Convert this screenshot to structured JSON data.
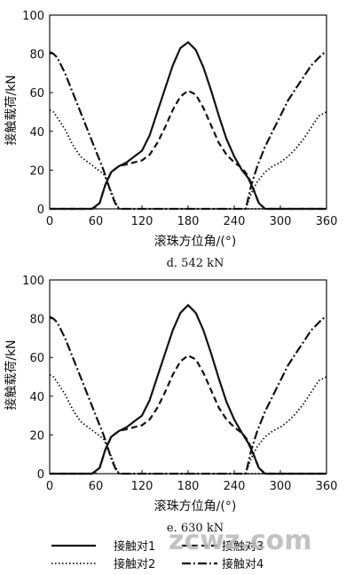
{
  "watermark": "zcwz.com",
  "legend": [
    {
      "label": "接触对1",
      "style": "solid"
    },
    {
      "label": "接触对3",
      "style": "dashed"
    },
    {
      "label": "接触对2",
      "style": "dotted"
    },
    {
      "label": "接触对4",
      "style": "dashdot"
    }
  ],
  "chart_data": [
    {
      "type": "line",
      "caption": "d. 542 kN",
      "xlabel": "滚珠方位角/(°)",
      "ylabel": "接触载荷/kN",
      "xlim": [
        0,
        360
      ],
      "ylim": [
        0,
        100
      ],
      "xticks": [
        0,
        60,
        120,
        180,
        240,
        300,
        360
      ],
      "yticks": [
        0,
        20,
        40,
        60,
        80,
        100
      ],
      "grid": false,
      "series": [
        {
          "name": "接触对1",
          "style": "solid",
          "x": [
            0,
            55,
            65,
            72,
            80,
            90,
            100,
            110,
            120,
            130,
            140,
            150,
            160,
            170,
            180,
            190,
            200,
            210,
            220,
            230,
            240,
            250,
            258,
            265,
            272,
            280,
            360
          ],
          "y": [
            0,
            0,
            3,
            12,
            19,
            22,
            24,
            27,
            30,
            38,
            50,
            62,
            74,
            83,
            86,
            82,
            73,
            61,
            48,
            36,
            27,
            20,
            16,
            10,
            3,
            0,
            0
          ]
        },
        {
          "name": "接触对3",
          "style": "dashed",
          "x": [
            0,
            55,
            65,
            72,
            80,
            90,
            100,
            110,
            120,
            130,
            140,
            150,
            160,
            170,
            180,
            190,
            200,
            210,
            220,
            230,
            240,
            250,
            258,
            265,
            272,
            280,
            360
          ],
          "y": [
            0,
            0,
            3,
            12,
            19,
            22,
            23,
            24,
            25,
            28,
            34,
            42,
            51,
            58,
            61,
            59,
            52,
            43,
            34,
            28,
            24,
            21,
            17,
            10,
            3,
            0,
            0
          ]
        },
        {
          "name": "接触对2",
          "style": "dotted",
          "x": [
            0,
            5,
            10,
            20,
            30,
            40,
            50,
            60,
            70,
            75,
            80,
            85,
            90,
            100,
            360
          ],
          "y": [
            51,
            50,
            47,
            41,
            33,
            27,
            24,
            21,
            18,
            14,
            9,
            4,
            0,
            0,
            0
          ]
        },
        {
          "name": "接触对4",
          "style": "dashdot",
          "x": [
            0,
            5,
            10,
            20,
            30,
            40,
            50,
            60,
            70,
            75,
            80,
            85,
            90,
            100,
            255,
            262,
            270,
            280,
            290,
            300,
            310,
            320,
            330,
            340,
            350,
            355,
            360
          ],
          "y": [
            81,
            80,
            78,
            70,
            60,
            50,
            40,
            30,
            20,
            14,
            8,
            3,
            0,
            0,
            0,
            12,
            22,
            32,
            40,
            48,
            56,
            62,
            68,
            74,
            78,
            80,
            81
          ]
        },
        {
          "name": "接触对2",
          "style": "dotted",
          "x": [
            255,
            262,
            270,
            280,
            290,
            300,
            310,
            320,
            330,
            340,
            350,
            360
          ],
          "y": [
            0,
            8,
            14,
            19,
            22,
            24,
            27,
            31,
            36,
            42,
            48,
            50
          ]
        }
      ]
    },
    {
      "type": "line",
      "caption": "e. 630 kN",
      "xlabel": "滚珠方位角/(°)",
      "ylabel": "接触载荷/kN",
      "xlim": [
        0,
        360
      ],
      "ylim": [
        0,
        100
      ],
      "xticks": [
        0,
        60,
        120,
        180,
        240,
        300,
        360
      ],
      "yticks": [
        0,
        20,
        40,
        60,
        80,
        100
      ],
      "grid": false,
      "series": [
        {
          "name": "接触对1",
          "style": "solid",
          "x": [
            0,
            55,
            65,
            72,
            80,
            90,
            100,
            110,
            120,
            130,
            140,
            150,
            160,
            170,
            180,
            190,
            200,
            210,
            220,
            230,
            240,
            250,
            258,
            265,
            272,
            280,
            360
          ],
          "y": [
            0,
            0,
            3,
            12,
            19,
            22,
            24,
            27,
            30,
            38,
            50,
            62,
            74,
            83,
            87,
            83,
            74,
            62,
            49,
            37,
            28,
            21,
            16,
            10,
            3,
            0,
            0
          ]
        },
        {
          "name": "接触对3",
          "style": "dashed",
          "x": [
            0,
            55,
            65,
            72,
            80,
            90,
            100,
            110,
            120,
            130,
            140,
            150,
            160,
            170,
            180,
            190,
            200,
            210,
            220,
            230,
            240,
            250,
            258,
            265,
            272,
            280,
            360
          ],
          "y": [
            0,
            0,
            3,
            12,
            19,
            22,
            23,
            24,
            25,
            28,
            34,
            42,
            51,
            58,
            61,
            59,
            52,
            43,
            34,
            28,
            24,
            21,
            17,
            10,
            3,
            0,
            0
          ]
        },
        {
          "name": "接触对2",
          "style": "dotted",
          "x": [
            0,
            5,
            10,
            20,
            30,
            40,
            50,
            60,
            70,
            75,
            80,
            85,
            90,
            100,
            360
          ],
          "y": [
            51,
            50,
            47,
            41,
            33,
            27,
            24,
            21,
            18,
            14,
            9,
            4,
            0,
            0,
            0
          ]
        },
        {
          "name": "接触对4",
          "style": "dashdot",
          "x": [
            0,
            5,
            10,
            20,
            30,
            40,
            50,
            60,
            70,
            75,
            80,
            85,
            90,
            100,
            255,
            262,
            270,
            280,
            290,
            300,
            310,
            320,
            330,
            340,
            350,
            355,
            360
          ],
          "y": [
            81,
            80,
            78,
            70,
            60,
            50,
            40,
            30,
            20,
            14,
            8,
            3,
            0,
            0,
            0,
            12,
            22,
            32,
            40,
            48,
            56,
            62,
            68,
            74,
            78,
            80,
            81
          ]
        },
        {
          "name": "接触对2",
          "style": "dotted",
          "x": [
            255,
            262,
            270,
            280,
            290,
            300,
            310,
            320,
            330,
            340,
            350,
            360
          ],
          "y": [
            0,
            8,
            14,
            19,
            22,
            24,
            27,
            31,
            36,
            42,
            48,
            50
          ]
        }
      ]
    }
  ]
}
